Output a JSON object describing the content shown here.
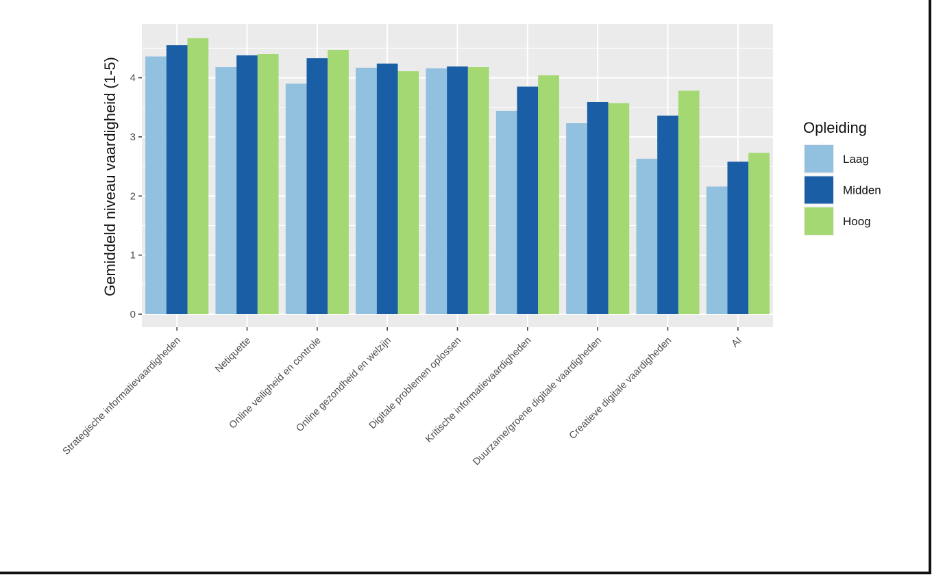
{
  "chart_data": {
    "type": "bar",
    "title": "",
    "xlabel": "",
    "ylabel": "Gemiddeld niveau vaardigheid (1-5)",
    "ylim": [
      -0.22,
      4.91
    ],
    "yticks": [
      0,
      1,
      2,
      3,
      4
    ],
    "grid": true,
    "legend": {
      "title": "Opleiding",
      "placement": "right"
    },
    "categories": [
      "Strategische informatievaardigheden",
      "Netiquette",
      "Online veiligheid en controle",
      "Online gezondheid en welzijn",
      "Digitale problemen oplossen",
      "Kritische informatievaardigheden",
      "Duurzame/groene digitale vaardigheden",
      "Creatieve digitale vaardigheden",
      "AI"
    ],
    "series": [
      {
        "name": "Laag",
        "color": "#92c0df",
        "values": [
          4.36,
          4.18,
          3.9,
          4.17,
          4.16,
          3.44,
          3.23,
          2.63,
          2.16
        ]
      },
      {
        "name": "Midden",
        "color": "#1a5fa6",
        "values": [
          4.55,
          4.38,
          4.33,
          4.24,
          4.19,
          3.85,
          3.59,
          3.36,
          2.58
        ]
      },
      {
        "name": "Hoog",
        "color": "#a3d872",
        "values": [
          4.67,
          4.4,
          4.47,
          4.11,
          4.18,
          4.04,
          3.57,
          3.78,
          2.73
        ]
      }
    ]
  }
}
